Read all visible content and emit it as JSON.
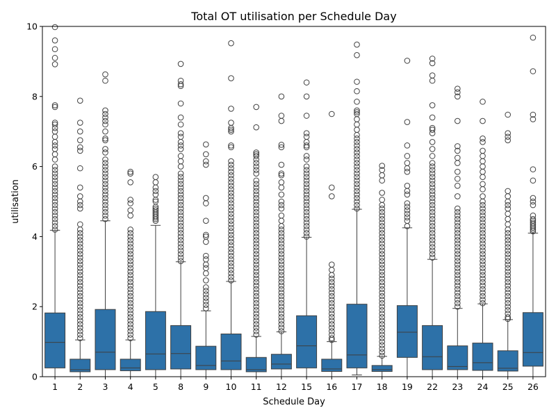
{
  "chart_data": {
    "type": "box",
    "title": "Total OT utilisation per Schedule Day",
    "xlabel": "Schedule Day",
    "ylabel": "utilisation",
    "ylim": [
      0,
      10
    ],
    "yticks": [
      0,
      2,
      4,
      6,
      8,
      10
    ],
    "grid": false,
    "box_color": "#2d71a8",
    "categories": [
      "1",
      "2",
      "3",
      "4",
      "5",
      "8",
      "9",
      "10",
      "11",
      "12",
      "15",
      "16",
      "17",
      "18",
      "19",
      "22",
      "23",
      "24",
      "25",
      "26"
    ],
    "boxes": [
      {
        "q1": 0.25,
        "median": 0.98,
        "q3": 1.82,
        "whisker_low": 0.0,
        "whisker_high": 4.18,
        "outliers": [
          4.2,
          4.3,
          4.4,
          4.5,
          4.6,
          4.7,
          4.8,
          4.9,
          5.0,
          5.1,
          5.2,
          5.3,
          5.4,
          5.5,
          5.6,
          5.7,
          5.8,
          5.9,
          6.0,
          6.2,
          6.35,
          6.5,
          6.6,
          6.7,
          6.85,
          7.0,
          7.1,
          7.2,
          7.25,
          7.7,
          7.75,
          8.92,
          9.1,
          9.35,
          9.6,
          9.98
        ]
      },
      {
        "q1": 0.14,
        "median": 0.2,
        "q3": 0.5,
        "whisker_low": 0.0,
        "whisker_high": 1.05,
        "outliers": [
          1.1,
          1.2,
          1.3,
          1.4,
          1.5,
          1.6,
          1.7,
          1.8,
          1.9,
          2.0,
          2.1,
          2.2,
          2.3,
          2.4,
          2.5,
          2.6,
          2.7,
          2.8,
          2.9,
          3.0,
          3.1,
          3.2,
          3.3,
          3.4,
          3.5,
          3.6,
          3.7,
          3.8,
          3.9,
          4.0,
          4.1,
          4.2,
          4.35,
          4.8,
          4.9,
          5.0,
          5.15,
          5.4,
          5.95,
          6.45,
          6.55,
          6.75,
          7.0,
          7.25,
          7.88
        ]
      },
      {
        "q1": 0.2,
        "median": 0.7,
        "q3": 1.92,
        "whisker_low": 0.0,
        "whisker_high": 4.45,
        "outliers": [
          4.5,
          4.6,
          4.7,
          4.8,
          4.9,
          5.0,
          5.1,
          5.2,
          5.3,
          5.4,
          5.5,
          5.6,
          5.7,
          5.8,
          5.9,
          6.0,
          6.1,
          6.2,
          6.4,
          6.5,
          6.75,
          6.8,
          7.0,
          7.2,
          7.3,
          7.4,
          7.5,
          7.6,
          8.45,
          8.63
        ]
      },
      {
        "q1": 0.17,
        "median": 0.25,
        "q3": 0.5,
        "whisker_low": 0.0,
        "whisker_high": 1.05,
        "outliers": [
          1.1,
          1.2,
          1.3,
          1.4,
          1.5,
          1.6,
          1.7,
          1.8,
          1.9,
          2.0,
          2.1,
          2.2,
          2.3,
          2.4,
          2.5,
          2.6,
          2.7,
          2.8,
          2.9,
          3.0,
          3.1,
          3.2,
          3.3,
          3.4,
          3.5,
          3.6,
          3.7,
          3.8,
          3.9,
          4.0,
          4.1,
          4.2,
          4.6,
          4.75,
          4.95,
          5.05,
          5.55,
          5.8,
          5.85
        ]
      },
      {
        "q1": 0.2,
        "median": 0.65,
        "q3": 1.86,
        "whisker_low": 0.0,
        "whisker_high": 4.32,
        "outliers": [
          4.45,
          4.5,
          4.55,
          4.6,
          4.65,
          4.7,
          4.75,
          4.8,
          4.85,
          5.0,
          5.05,
          5.2,
          5.3,
          5.4,
          5.55,
          5.7
        ]
      },
      {
        "q1": 0.22,
        "median": 0.66,
        "q3": 1.46,
        "whisker_low": 0.0,
        "whisker_high": 3.28,
        "outliers": [
          3.3,
          3.4,
          3.5,
          3.6,
          3.7,
          3.8,
          3.9,
          4.0,
          4.1,
          4.2,
          4.3,
          4.4,
          4.5,
          4.6,
          4.7,
          4.8,
          4.9,
          5.0,
          5.1,
          5.2,
          5.3,
          5.4,
          5.5,
          5.6,
          5.7,
          5.8,
          6.0,
          6.15,
          6.3,
          6.5,
          6.6,
          6.7,
          6.85,
          6.95,
          7.2,
          7.4,
          7.8,
          8.3,
          8.35,
          8.45,
          8.93
        ]
      },
      {
        "q1": 0.2,
        "median": 0.32,
        "q3": 0.87,
        "whisker_low": 0.0,
        "whisker_high": 1.88,
        "outliers": [
          1.95,
          2.05,
          2.15,
          2.25,
          2.35,
          2.45,
          2.55,
          2.75,
          2.95,
          3.1,
          3.2,
          3.35,
          3.45,
          3.85,
          4.0,
          4.05,
          4.45,
          4.95,
          5.1,
          6.05,
          6.15,
          6.35,
          6.63
        ]
      },
      {
        "q1": 0.2,
        "median": 0.45,
        "q3": 1.22,
        "whisker_low": 0.0,
        "whisker_high": 2.72,
        "outliers": [
          2.75,
          2.85,
          2.95,
          3.05,
          3.15,
          3.25,
          3.35,
          3.45,
          3.55,
          3.65,
          3.75,
          3.85,
          3.95,
          4.05,
          4.15,
          4.25,
          4.35,
          4.45,
          4.55,
          4.65,
          4.75,
          4.85,
          4.95,
          5.05,
          5.15,
          5.25,
          5.35,
          5.45,
          5.55,
          5.65,
          5.75,
          5.85,
          5.95,
          6.05,
          6.15,
          6.55,
          6.6,
          7.0,
          7.05,
          7.1,
          7.25,
          7.65,
          8.52,
          9.52
        ]
      },
      {
        "q1": 0.14,
        "median": 0.2,
        "q3": 0.55,
        "whisker_low": 0.0,
        "whisker_high": 1.15,
        "outliers": [
          1.2,
          1.3,
          1.4,
          1.5,
          1.6,
          1.7,
          1.8,
          1.9,
          2.0,
          2.1,
          2.2,
          2.3,
          2.4,
          2.5,
          2.6,
          2.7,
          2.8,
          2.9,
          3.0,
          3.1,
          3.2,
          3.3,
          3.4,
          3.5,
          3.6,
          3.7,
          3.8,
          3.9,
          4.0,
          4.1,
          4.2,
          4.3,
          4.4,
          4.5,
          4.6,
          4.7,
          4.8,
          4.9,
          5.0,
          5.1,
          5.2,
          5.3,
          5.4,
          5.5,
          5.6,
          5.8,
          5.9,
          6.0,
          6.1,
          6.2,
          6.3,
          6.35,
          6.4,
          7.12,
          7.7
        ]
      },
      {
        "q1": 0.22,
        "median": 0.36,
        "q3": 0.64,
        "whisker_low": 0.0,
        "whisker_high": 1.28,
        "outliers": [
          1.3,
          1.4,
          1.5,
          1.6,
          1.7,
          1.8,
          1.9,
          2.0,
          2.1,
          2.2,
          2.3,
          2.4,
          2.5,
          2.6,
          2.7,
          2.8,
          2.9,
          3.0,
          3.1,
          3.2,
          3.3,
          3.4,
          3.5,
          3.6,
          3.7,
          3.8,
          3.9,
          4.0,
          4.1,
          4.2,
          4.3,
          4.45,
          4.6,
          4.8,
          4.9,
          5.0,
          5.2,
          5.4,
          5.55,
          5.75,
          5.8,
          6.05,
          6.55,
          6.62,
          7.3,
          7.45,
          8.0
        ]
      },
      {
        "q1": 0.25,
        "median": 0.88,
        "q3": 1.74,
        "whisker_low": 0.0,
        "whisker_high": 3.98,
        "outliers": [
          4.0,
          4.1,
          4.2,
          4.3,
          4.4,
          4.5,
          4.6,
          4.7,
          4.8,
          4.9,
          5.0,
          5.1,
          5.2,
          5.3,
          5.4,
          5.5,
          5.6,
          5.7,
          5.8,
          5.9,
          6.0,
          6.2,
          6.3,
          6.55,
          6.6,
          6.7,
          6.85,
          6.95,
          7.45,
          8.0,
          8.4
        ]
      },
      {
        "q1": 0.15,
        "median": 0.22,
        "q3": 0.5,
        "whisker_low": 0.0,
        "whisker_high": 1.0,
        "outliers": [
          1.05,
          1.1,
          1.2,
          1.3,
          1.4,
          1.5,
          1.6,
          1.7,
          1.8,
          1.9,
          2.0,
          2.1,
          2.2,
          2.3,
          2.4,
          2.5,
          2.6,
          2.7,
          2.8,
          2.9,
          3.05,
          3.2,
          5.15,
          5.4,
          7.5
        ]
      },
      {
        "q1": 0.25,
        "median": 0.62,
        "q3": 2.07,
        "whisker_low": 0.05,
        "whisker_high": 4.78,
        "outliers": [
          4.8,
          4.9,
          5.0,
          5.1,
          5.2,
          5.3,
          5.4,
          5.5,
          5.6,
          5.7,
          5.8,
          5.9,
          6.0,
          6.1,
          6.2,
          6.3,
          6.4,
          6.5,
          6.6,
          6.7,
          6.8,
          6.9,
          7.05,
          7.2,
          7.35,
          7.5,
          7.55,
          7.6,
          7.85,
          8.15,
          8.42,
          9.18,
          9.48
        ]
      },
      {
        "q1": 0.15,
        "median": 0.2,
        "q3": 0.32,
        "whisker_low": 0.0,
        "whisker_high": 0.58,
        "outliers": [
          0.6,
          0.7,
          0.8,
          0.9,
          1.0,
          1.1,
          1.2,
          1.3,
          1.4,
          1.5,
          1.6,
          1.7,
          1.8,
          1.9,
          2.0,
          2.1,
          2.2,
          2.3,
          2.4,
          2.5,
          2.6,
          2.7,
          2.8,
          2.9,
          3.0,
          3.1,
          3.2,
          3.3,
          3.4,
          3.5,
          3.6,
          3.7,
          3.8,
          3.9,
          4.0,
          4.1,
          4.2,
          4.3,
          4.4,
          4.5,
          4.6,
          4.7,
          4.8,
          4.9,
          5.05,
          5.25,
          5.6,
          5.75,
          5.9,
          6.02
        ]
      },
      {
        "q1": 0.55,
        "median": 1.27,
        "q3": 2.03,
        "whisker_low": 0.0,
        "whisker_high": 4.25,
        "outliers": [
          4.3,
          4.45,
          4.55,
          4.65,
          4.75,
          4.85,
          4.95,
          5.2,
          5.3,
          5.45,
          5.85,
          5.95,
          6.1,
          6.3,
          6.6,
          7.27,
          9.02
        ]
      },
      {
        "q1": 0.2,
        "median": 0.57,
        "q3": 1.46,
        "whisker_low": 0.0,
        "whisker_high": 3.35,
        "outliers": [
          3.4,
          3.5,
          3.6,
          3.7,
          3.8,
          3.9,
          4.0,
          4.1,
          4.2,
          4.3,
          4.4,
          4.5,
          4.6,
          4.7,
          4.8,
          4.9,
          5.0,
          5.1,
          5.2,
          5.3,
          5.4,
          5.5,
          5.6,
          5.7,
          5.8,
          5.9,
          6.0,
          6.1,
          6.3,
          6.5,
          6.7,
          6.95,
          7.05,
          7.1,
          7.4,
          7.75,
          8.45,
          8.6,
          8.95,
          9.08
        ]
      },
      {
        "q1": 0.2,
        "median": 0.29,
        "q3": 0.88,
        "whisker_low": 0.0,
        "whisker_high": 1.95,
        "outliers": [
          2.0,
          2.1,
          2.2,
          2.3,
          2.4,
          2.5,
          2.6,
          2.7,
          2.8,
          2.9,
          3.0,
          3.1,
          3.2,
          3.3,
          3.4,
          3.5,
          3.6,
          3.7,
          3.8,
          3.9,
          4.0,
          4.1,
          4.2,
          4.3,
          4.4,
          4.5,
          4.6,
          4.7,
          4.8,
          5.15,
          5.45,
          5.65,
          5.85,
          6.1,
          6.25,
          6.45,
          6.58,
          7.3,
          8.0,
          8.12,
          8.22
        ]
      },
      {
        "q1": 0.18,
        "median": 0.4,
        "q3": 0.96,
        "whisker_low": 0.0,
        "whisker_high": 2.08,
        "outliers": [
          2.1,
          2.2,
          2.3,
          2.4,
          2.5,
          2.6,
          2.7,
          2.8,
          2.9,
          3.0,
          3.1,
          3.2,
          3.3,
          3.4,
          3.5,
          3.6,
          3.7,
          3.8,
          3.9,
          4.0,
          4.1,
          4.2,
          4.3,
          4.4,
          4.5,
          4.6,
          4.7,
          4.8,
          4.9,
          5.0,
          5.15,
          5.35,
          5.5,
          5.7,
          5.85,
          6.0,
          6.15,
          6.3,
          6.45,
          6.7,
          6.8,
          7.3,
          7.85
        ]
      },
      {
        "q1": 0.16,
        "median": 0.24,
        "q3": 0.74,
        "whisker_low": 0.0,
        "whisker_high": 1.63,
        "outliers": [
          1.65,
          1.7,
          1.8,
          1.9,
          2.0,
          2.1,
          2.2,
          2.3,
          2.4,
          2.5,
          2.6,
          2.7,
          2.8,
          2.9,
          3.0,
          3.1,
          3.2,
          3.3,
          3.4,
          3.5,
          3.6,
          3.7,
          3.8,
          3.9,
          4.0,
          4.1,
          4.2,
          4.35,
          4.5,
          4.65,
          4.8,
          4.9,
          5.0,
          5.15,
          5.3,
          6.75,
          6.85,
          6.95,
          7.48
        ]
      },
      {
        "q1": 0.3,
        "median": 0.69,
        "q3": 1.83,
        "whisker_low": 0.0,
        "whisker_high": 4.1,
        "outliers": [
          4.15,
          4.2,
          4.25,
          4.3,
          4.35,
          4.4,
          4.45,
          4.5,
          4.6,
          4.9,
          5.0,
          5.1,
          5.6,
          5.92,
          7.35,
          7.48,
          8.72,
          9.68
        ]
      }
    ]
  }
}
